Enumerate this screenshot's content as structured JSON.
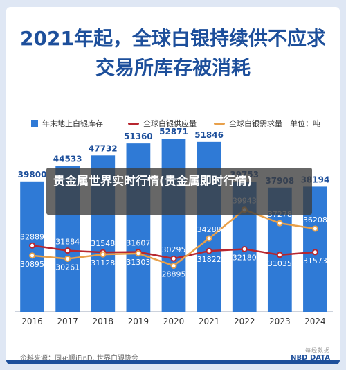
{
  "title_line1": "2021年起，全球白银持续供不应求",
  "title_line2": "交易所库存被消耗",
  "unit_label": "单位：吨",
  "overlay_text": "贵金属世界实时行情(贵金属即时行情)",
  "source_text": "资料来源：同花顺iFinD, 世界白银协会",
  "logo_top": "每经数据",
  "logo_bottom": "NBD DATA",
  "colors": {
    "bar": "#2f7ad6",
    "supply": "#b7262f",
    "demand": "#e8a04a",
    "title": "#1d4f9b"
  },
  "chart_data": {
    "type": "bar+line",
    "categories": [
      "2016",
      "2017",
      "2018",
      "2019",
      "2020",
      "2021",
      "2022",
      "2023",
      "2024"
    ],
    "series": [
      {
        "name": "年末地上白银库存",
        "type": "bar",
        "values": [
          39800,
          44533,
          47732,
          51360,
          52871,
          51846,
          39753,
          37908,
          38194
        ]
      },
      {
        "name": "全球白银供应量",
        "type": "line",
        "values": [
          32889,
          31884,
          31548,
          31607,
          30295,
          31822,
          32180,
          31035,
          31573
        ]
      },
      {
        "name": "全球白银需求量",
        "type": "line",
        "values": [
          30895,
          30261,
          31128,
          31303,
          28895,
          34288,
          39943,
          37278,
          36208
        ]
      }
    ]
  }
}
